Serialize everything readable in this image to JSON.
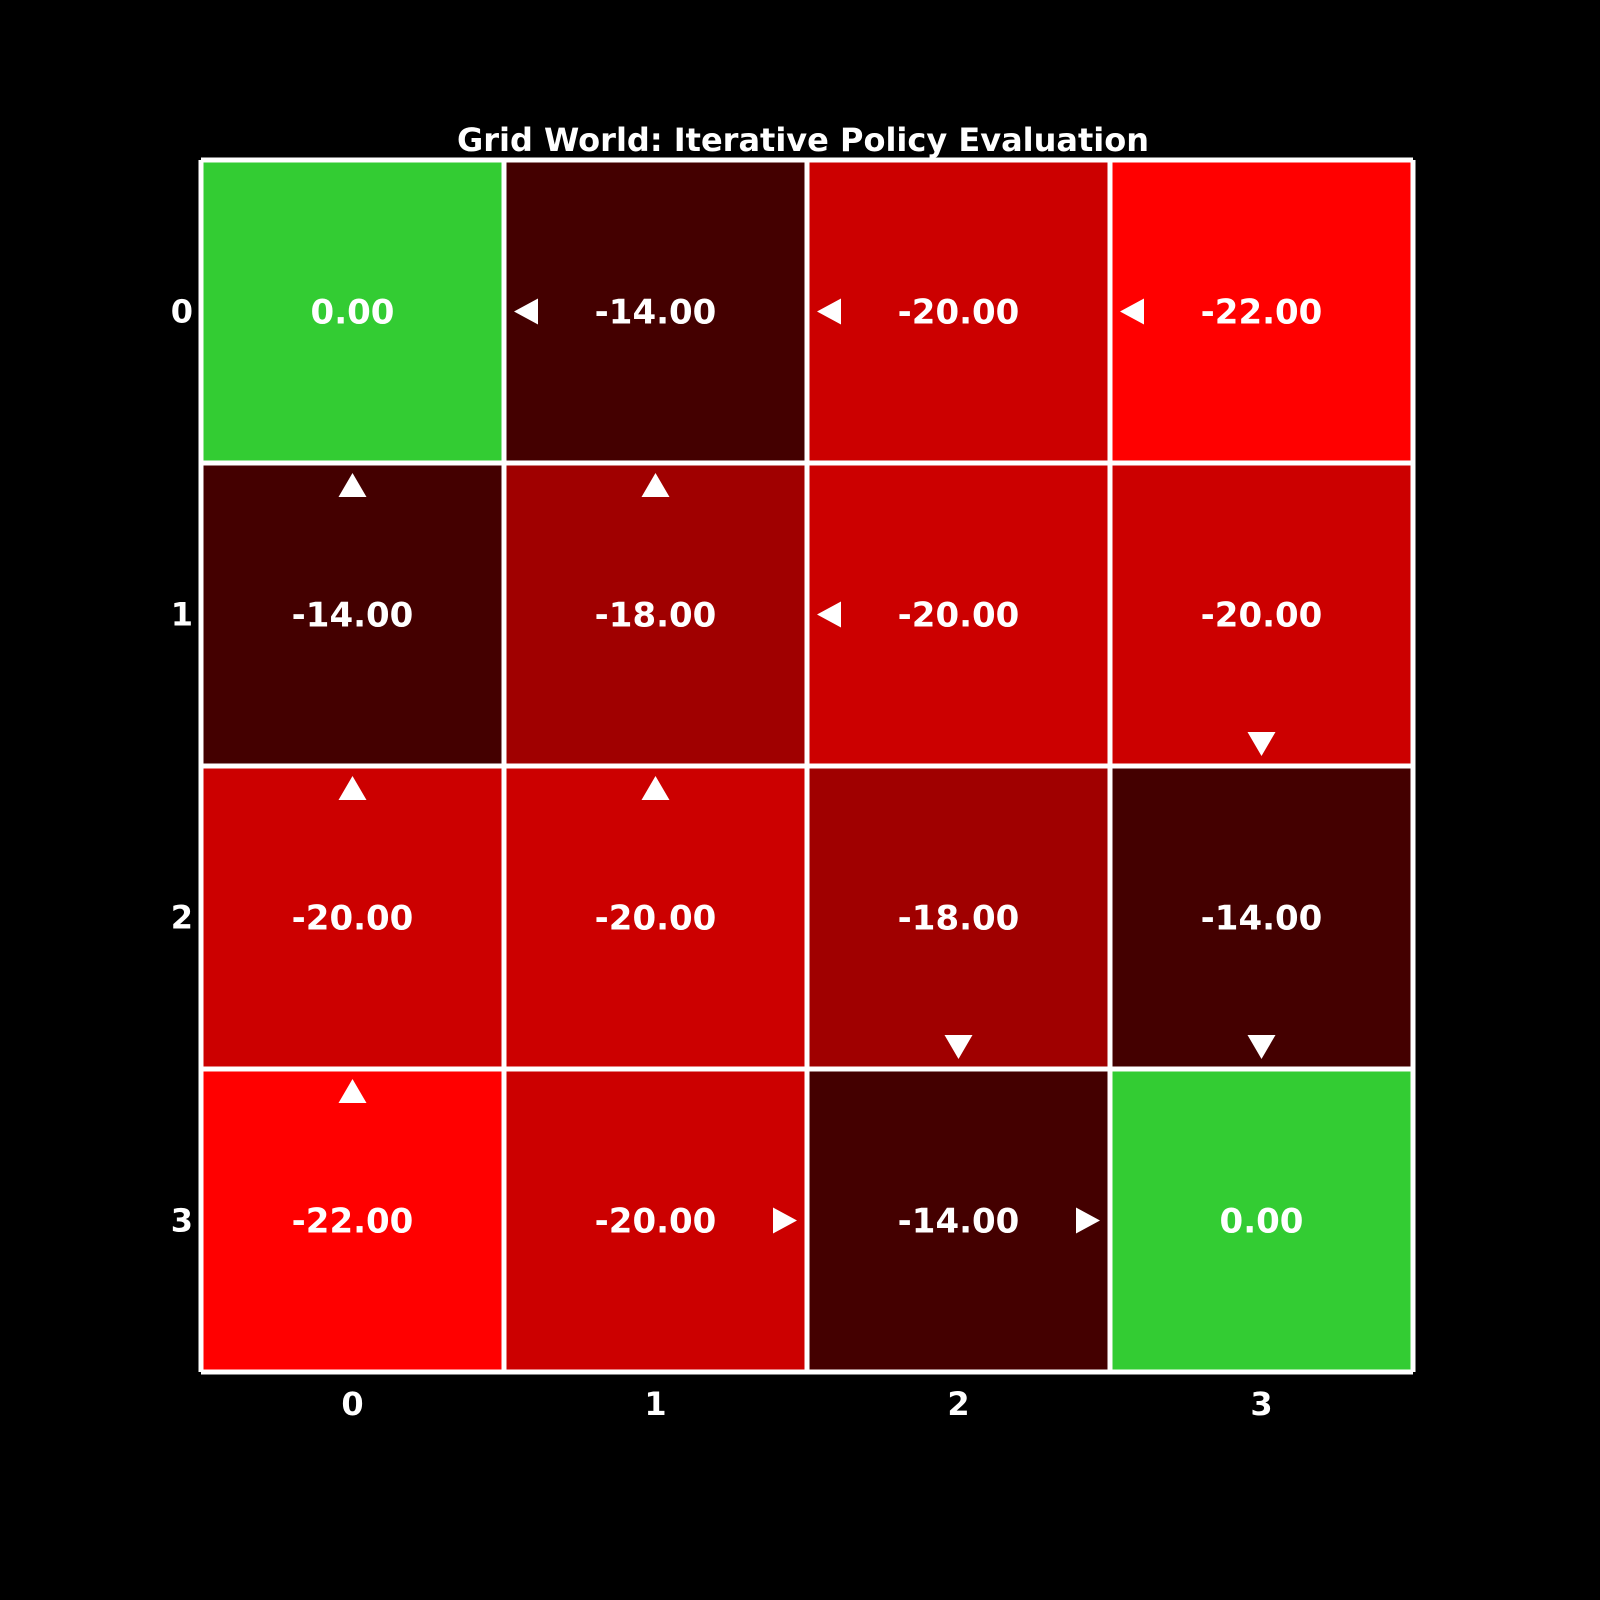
{
  "chart_data": {
    "type": "heatmap",
    "title": "Grid World: Iterative Policy Evaluation",
    "rows": [
      0,
      1,
      2,
      3
    ],
    "cols": [
      0,
      1,
      2,
      3
    ],
    "x_ticks": [
      "0",
      "1",
      "2",
      "3"
    ],
    "y_ticks": [
      "0",
      "1",
      "2",
      "3"
    ],
    "values": [
      [
        0.0,
        -14.0,
        -20.0,
        -22.0
      ],
      [
        -14.0,
        -18.0,
        -20.0,
        -20.0
      ],
      [
        -20.0,
        -20.0,
        -18.0,
        -14.0
      ],
      [
        -22.0,
        -20.0,
        -14.0,
        0.0
      ]
    ],
    "value_labels": [
      [
        "0.00",
        "-14.00",
        "-20.00",
        "-22.00"
      ],
      [
        "-14.00",
        "-18.00",
        "-20.00",
        "-20.00"
      ],
      [
        "-20.00",
        "-20.00",
        "-18.00",
        "-14.00"
      ],
      [
        "-22.00",
        "-20.00",
        "-14.00",
        "0.00"
      ]
    ],
    "policy_arrows": [
      [
        [],
        [
          "left"
        ],
        [
          "left"
        ],
        [
          "left"
        ]
      ],
      [
        [
          "up"
        ],
        [
          "up"
        ],
        [
          "left"
        ],
        [
          "down"
        ]
      ],
      [
        [
          "up"
        ],
        [
          "up"
        ],
        [
          "down"
        ],
        [
          "down"
        ]
      ],
      [
        [
          "up"
        ],
        [
          "right"
        ],
        [
          "right"
        ],
        []
      ]
    ],
    "terminal_states": [
      [
        0,
        0
      ],
      [
        3,
        3
      ]
    ],
    "colors": {
      "background": "#000000",
      "terminal": "#33cc33",
      "grid_lines": "#ffffff",
      "text": "#ffffff",
      "value_colors": {
        "0.00": "#33cc33",
        "-14.00": "#440000",
        "-18.00": "#a00000",
        "-20.00": "#cc0000",
        "-22.00": "#ff0000"
      }
    }
  }
}
